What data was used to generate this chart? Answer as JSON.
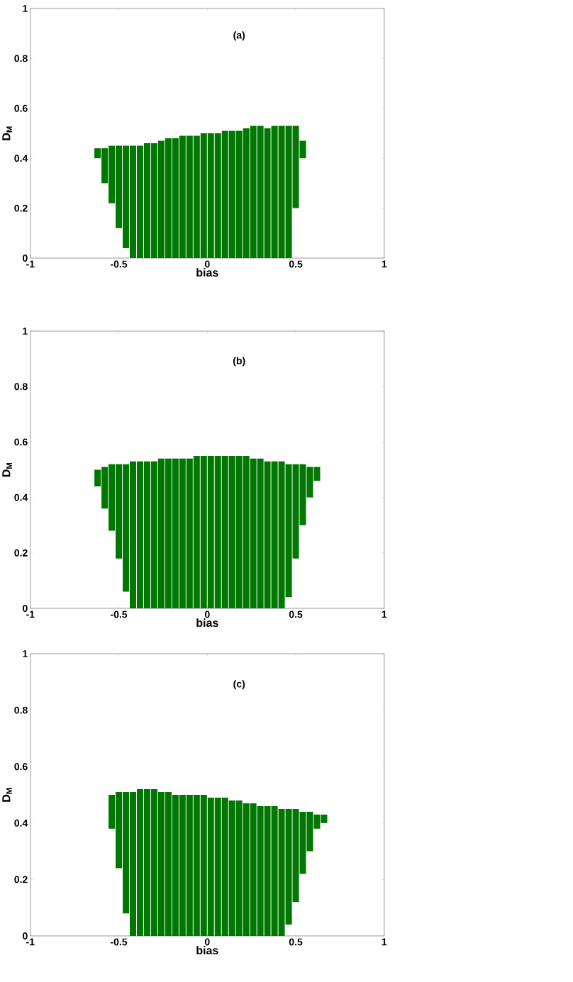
{
  "chart_data": [
    {
      "type": "bar",
      "xlabel": "bias",
      "ylabel": "D$_{M}$",
      "annotations": [
        "(a)"
      ],
      "color": "#007700",
      "x": [
        -0.62,
        -0.58,
        -0.54,
        -0.5,
        -0.46,
        -0.42,
        -0.38,
        -0.34,
        -0.3,
        -0.26,
        -0.22,
        -0.18,
        -0.14,
        -0.1,
        -0.06,
        -0.02,
        0.02,
        0.06,
        0.1,
        0.14,
        0.18,
        0.22,
        0.26,
        0.3,
        0.34,
        0.38,
        0.42,
        0.46,
        0.5,
        0.54
      ],
      "base": [
        0.4,
        0.3,
        0.22,
        0.12,
        0.04,
        0,
        0,
        0,
        0,
        0,
        0,
        0,
        0,
        0,
        0,
        0,
        0,
        0,
        0,
        0,
        0,
        0,
        0,
        0,
        0,
        0,
        0,
        0,
        0.2,
        0.4
      ],
      "values": [
        0.04,
        0.14,
        0.23,
        0.33,
        0.41,
        0.45,
        0.45,
        0.46,
        0.46,
        0.47,
        0.48,
        0.48,
        0.49,
        0.49,
        0.49,
        0.5,
        0.5,
        0.5,
        0.51,
        0.51,
        0.51,
        0.52,
        0.53,
        0.53,
        0.52,
        0.53,
        0.53,
        0.53,
        0.33,
        0.07
      ],
      "xlim": [
        -1,
        1
      ],
      "ylim": [
        0,
        1
      ],
      "xticks": [
        -1,
        -0.5,
        0,
        0.5,
        1
      ],
      "yticks": [
        0,
        0.2,
        0.4,
        0.6,
        0.8,
        1
      ]
    },
    {
      "type": "bar",
      "xlabel": "bias",
      "ylabel": "D$_{M}$",
      "annotations": [
        "(b)"
      ],
      "color": "#007700",
      "x": [
        -0.62,
        -0.58,
        -0.54,
        -0.5,
        -0.46,
        -0.42,
        -0.38,
        -0.34,
        -0.3,
        -0.26,
        -0.22,
        -0.18,
        -0.14,
        -0.1,
        -0.06,
        -0.02,
        0.02,
        0.06,
        0.1,
        0.14,
        0.18,
        0.22,
        0.26,
        0.3,
        0.34,
        0.38,
        0.42,
        0.46,
        0.5,
        0.54,
        0.58,
        0.62
      ],
      "base": [
        0.44,
        0.36,
        0.28,
        0.18,
        0.06,
        0,
        0,
        0,
        0,
        0,
        0,
        0,
        0,
        0,
        0,
        0,
        0,
        0,
        0,
        0,
        0,
        0,
        0,
        0,
        0,
        0,
        0,
        0.04,
        0.18,
        0.3,
        0.4,
        0.46
      ],
      "values": [
        0.06,
        0.15,
        0.24,
        0.34,
        0.46,
        0.53,
        0.53,
        0.53,
        0.53,
        0.54,
        0.54,
        0.54,
        0.54,
        0.54,
        0.55,
        0.55,
        0.55,
        0.55,
        0.55,
        0.55,
        0.55,
        0.55,
        0.54,
        0.54,
        0.53,
        0.53,
        0.53,
        0.48,
        0.34,
        0.22,
        0.11,
        0.05
      ],
      "xlim": [
        -1,
        1
      ],
      "ylim": [
        0,
        1
      ],
      "xticks": [
        -1,
        -0.5,
        0,
        0.5,
        1
      ],
      "yticks": [
        0,
        0.2,
        0.4,
        0.6,
        0.8,
        1
      ]
    },
    {
      "type": "bar",
      "xlabel": "bias",
      "ylabel": "D$_{M}$",
      "annotations": [
        "(c)"
      ],
      "color": "#007700",
      "x": [
        -0.54,
        -0.5,
        -0.46,
        -0.42,
        -0.38,
        -0.34,
        -0.3,
        -0.26,
        -0.22,
        -0.18,
        -0.14,
        -0.1,
        -0.06,
        -0.02,
        0.02,
        0.06,
        0.1,
        0.14,
        0.18,
        0.22,
        0.26,
        0.3,
        0.34,
        0.38,
        0.42,
        0.46,
        0.5,
        0.54,
        0.58,
        0.62,
        0.66
      ],
      "base": [
        0.38,
        0.24,
        0.08,
        0,
        0,
        0,
        0,
        0,
        0,
        0,
        0,
        0,
        0,
        0,
        0,
        0,
        0,
        0,
        0,
        0,
        0,
        0,
        0,
        0,
        0,
        0.04,
        0.12,
        0.22,
        0.3,
        0.38,
        0.4
      ],
      "values": [
        0.12,
        0.27,
        0.43,
        0.51,
        0.52,
        0.52,
        0.52,
        0.51,
        0.51,
        0.5,
        0.5,
        0.5,
        0.5,
        0.5,
        0.49,
        0.49,
        0.49,
        0.48,
        0.48,
        0.47,
        0.47,
        0.46,
        0.46,
        0.46,
        0.45,
        0.41,
        0.33,
        0.22,
        0.14,
        0.05,
        0.03
      ],
      "xlim": [
        -1,
        1
      ],
      "ylim": [
        0,
        1
      ],
      "xticks": [
        -1,
        -0.5,
        0,
        0.5,
        1
      ],
      "yticks": [
        0,
        0.2,
        0.4,
        0.6,
        0.8,
        1
      ]
    }
  ]
}
